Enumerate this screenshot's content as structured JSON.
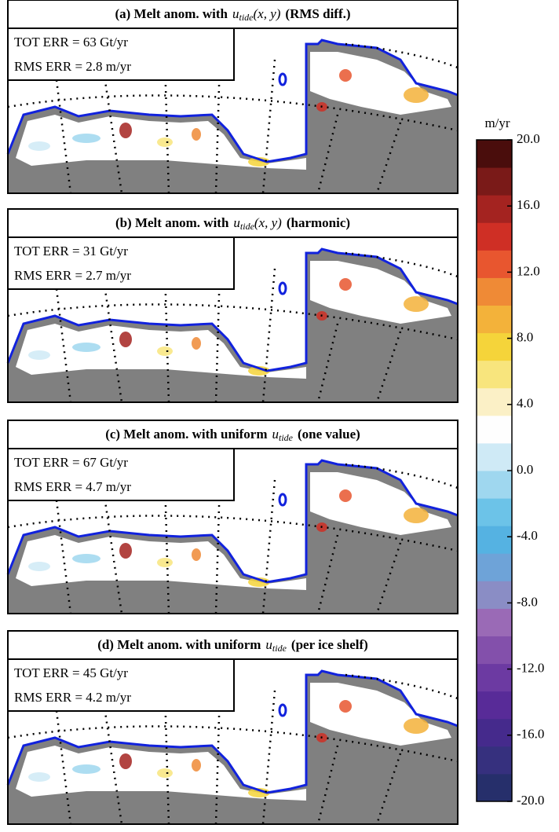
{
  "panels": [
    {
      "label": "(a) Melt anom. with",
      "var": "u",
      "sub": "tide",
      "args": "(x, y)",
      "suffix": "(RMS diff.)",
      "tot_err": "TOT ERR = 63 Gt/yr",
      "rms_err": "RMS ERR = 2.8 m/yr"
    },
    {
      "label": "(b) Melt anom. with",
      "var": "u",
      "sub": "tide",
      "args": "(x, y)",
      "suffix": "(harmonic)",
      "tot_err": "TOT ERR = 31 Gt/yr",
      "rms_err": "RMS ERR = 2.7 m/yr"
    },
    {
      "label": "(c) Melt anom. with uniform",
      "var": "u",
      "sub": "tide",
      "suffix": "(one value)",
      "tot_err": "TOT ERR = 67 Gt/yr",
      "rms_err": "RMS ERR = 4.7 m/yr"
    },
    {
      "label": "(d) Melt anom. with uniform",
      "var": "u",
      "sub": "tide",
      "suffix": "(per ice shelf)",
      "tot_err": "TOT ERR = 45 Gt/yr",
      "rms_err": "RMS ERR = 4.2 m/yr"
    }
  ],
  "colorbar": {
    "label": "m/yr",
    "lim": [
      -20,
      20
    ],
    "ticks": [
      {
        "value": 20,
        "label": "20.0"
      },
      {
        "value": 16,
        "label": "16.0"
      },
      {
        "value": 12,
        "label": "12.0"
      },
      {
        "value": 8,
        "label": "8.0"
      },
      {
        "value": 4,
        "label": "4.0"
      },
      {
        "value": 0,
        "label": "0.0"
      },
      {
        "value": -4,
        "label": "-4.0"
      },
      {
        "value": -8,
        "label": "-8.0"
      },
      {
        "value": -12,
        "label": "-12.0"
      },
      {
        "value": -16,
        "label": "-16.0"
      },
      {
        "value": -20,
        "label": "-20.0"
      }
    ],
    "colors": [
      "#262f6b",
      "#36307e",
      "#452a8c",
      "#582b98",
      "#6c3aa2",
      "#8350ab",
      "#9a6ab6",
      "#8a8dc5",
      "#6ea3d8",
      "#55b2e2",
      "#6cc3e8",
      "#9fd7ef",
      "#cfeaf6",
      "#fefefe",
      "#fbf0c6",
      "#f8e57d",
      "#f5d43a",
      "#f3b23a",
      "#ef8a36",
      "#e8562f",
      "#cf2f25",
      "#a42320",
      "#7a1a18",
      "#4a0d0c"
    ]
  }
}
